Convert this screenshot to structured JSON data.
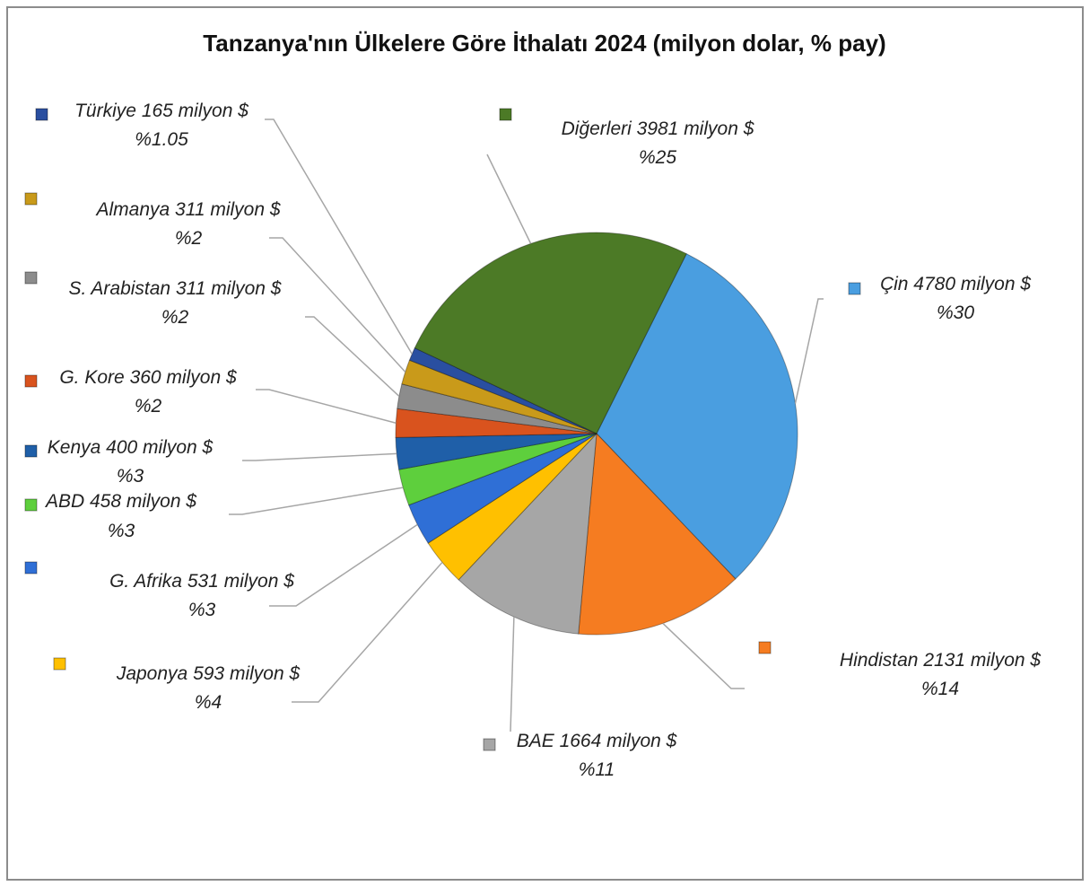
{
  "chart_data": {
    "type": "pie",
    "title": "Tanzanya'nın Ülkelere Göre İthalatı 2024 (milyon dolar, % pay)",
    "categories": [
      "Çin",
      "Hindistan",
      "BAE",
      "Japonya",
      "G. Afrika",
      "ABD",
      "Kenya",
      "G. Kore",
      "S. Arabistan",
      "Almanya",
      "Türkiye",
      "Diğerleri"
    ],
    "values": [
      4780,
      2131,
      1664,
      593,
      531,
      458,
      400,
      360,
      311,
      311,
      165,
      3981
    ],
    "value_labels": [
      "4780 milyon $",
      "2131 milyon $",
      "1664 milyon $",
      "593 milyon $",
      "531 milyon $",
      "458 milyon $",
      "400 milyon $",
      "360 milyon $",
      "311 milyon $",
      "311 milyon $",
      "165 milyon $",
      "3981 milyon $"
    ],
    "percents": [
      30,
      14,
      11,
      4,
      3,
      3,
      3,
      2,
      2,
      2,
      1.05,
      25
    ],
    "percent_labels": [
      "%30",
      "%14",
      "%11",
      "%4",
      "%3",
      "%3",
      "%3",
      "%2",
      "%2",
      "%2",
      "%1.05",
      "%25"
    ],
    "colors": [
      "#4a9ee0",
      "#f57c21",
      "#a6a6a6",
      "#ffc000",
      "#2f6fd6",
      "#5ecf3d",
      "#1f5fa8",
      "#d9531e",
      "#8c8c8c",
      "#c99a1a",
      "#2a4fa0",
      "#4c7a26"
    ]
  }
}
